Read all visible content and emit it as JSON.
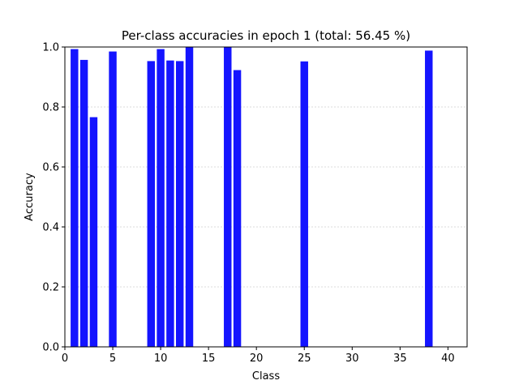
{
  "chart_data": {
    "type": "bar",
    "title": "Per-class accuracies in epoch 1 (total: 56.45 %)",
    "xlabel": "Class",
    "ylabel": "Accuracy",
    "xlim": [
      0,
      42
    ],
    "ylim": [
      0,
      1.0
    ],
    "x_ticks": [
      0,
      5,
      10,
      15,
      20,
      25,
      30,
      35,
      40
    ],
    "y_ticks": [
      0.0,
      0.2,
      0.4,
      0.6,
      0.8,
      1.0
    ],
    "y_tick_labels": [
      "0.0",
      "0.2",
      "0.4",
      "0.6",
      "0.8",
      "1.0"
    ],
    "grid": "horizontal dotted",
    "bar_color": "#1414ff",
    "x": [
      1,
      2,
      3,
      5,
      9,
      10,
      11,
      12,
      13,
      17,
      18,
      25,
      38
    ],
    "values": [
      0.993,
      0.957,
      0.766,
      0.985,
      0.953,
      0.993,
      0.955,
      0.953,
      0.999,
      0.999,
      0.923,
      0.952,
      0.988
    ]
  }
}
